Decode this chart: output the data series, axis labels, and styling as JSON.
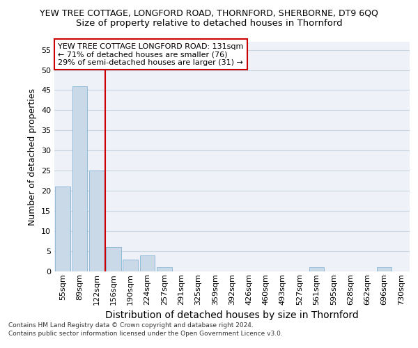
{
  "title": "YEW TREE COTTAGE, LONGFORD ROAD, THORNFORD, SHERBORNE, DT9 6QQ",
  "subtitle": "Size of property relative to detached houses in Thornford",
  "xlabel": "Distribution of detached houses by size in Thornford",
  "ylabel": "Number of detached properties",
  "categories": [
    "55sqm",
    "89sqm",
    "122sqm",
    "156sqm",
    "190sqm",
    "224sqm",
    "257sqm",
    "291sqm",
    "325sqm",
    "359sqm",
    "392sqm",
    "426sqm",
    "460sqm",
    "493sqm",
    "527sqm",
    "561sqm",
    "595sqm",
    "628sqm",
    "662sqm",
    "696sqm",
    "730sqm"
  ],
  "values": [
    21,
    46,
    25,
    6,
    3,
    4,
    1,
    0,
    0,
    0,
    0,
    0,
    0,
    0,
    0,
    1,
    0,
    0,
    0,
    1,
    0
  ],
  "bar_color": "#c9d9e8",
  "bar_edge_color": "#8fb8d8",
  "property_line_color": "#cc0000",
  "annotation_text": "YEW TREE COTTAGE LONGFORD ROAD: 131sqm\n← 71% of detached houses are smaller (76)\n29% of semi-detached houses are larger (31) →",
  "annotation_box_facecolor": "#ffffff",
  "annotation_box_edgecolor": "#cc0000",
  "ylim": [
    0,
    57
  ],
  "yticks": [
    0,
    5,
    10,
    15,
    20,
    25,
    30,
    35,
    40,
    45,
    50,
    55
  ],
  "footer1": "Contains HM Land Registry data © Crown copyright and database right 2024.",
  "footer2": "Contains public sector information licensed under the Open Government Licence v3.0.",
  "title_fontsize": 9,
  "subtitle_fontsize": 9.5,
  "xlabel_fontsize": 10,
  "ylabel_fontsize": 9,
  "tick_fontsize": 8,
  "annotation_fontsize": 8,
  "footer_fontsize": 6.5,
  "grid_color": "#c8d4e0",
  "bg_color": "#eef2f8"
}
